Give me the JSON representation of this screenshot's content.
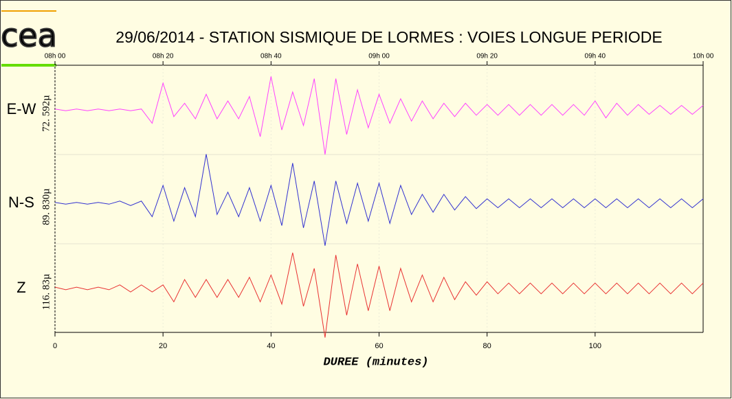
{
  "chart_data": {
    "type": "seismogram",
    "logo": "cea",
    "title": "29/06/2014  -  STATION SISMIQUE DE LORMES : VOIES LONGUE PERIODE",
    "xlabel": "DUREE (minutes)",
    "xlim": [
      0,
      120
    ],
    "xticks": [
      0,
      20,
      40,
      60,
      80,
      100
    ],
    "top_xticks": [
      {
        "value": 0,
        "label": "08h 00"
      },
      {
        "value": 20,
        "label": "08h 20"
      },
      {
        "value": 40,
        "label": "08h 40"
      },
      {
        "value": 60,
        "label": "09h 00"
      },
      {
        "value": 80,
        "label": "09h 20"
      },
      {
        "value": 100,
        "label": "09h 40"
      },
      {
        "value": 120,
        "label": "10h 00"
      }
    ],
    "ylim": [
      -1,
      1
    ],
    "grid": true,
    "x": [
      0,
      2,
      4,
      6,
      8,
      10,
      12,
      14,
      16,
      18,
      20,
      22,
      24,
      26,
      28,
      30,
      32,
      34,
      36,
      38,
      40,
      42,
      44,
      46,
      48,
      50,
      52,
      54,
      56,
      58,
      60,
      62,
      64,
      66,
      68,
      70,
      72,
      74,
      76,
      78,
      80,
      82,
      84,
      86,
      88,
      90,
      92,
      94,
      96,
      98,
      100,
      102,
      104,
      106,
      108,
      110,
      112,
      114,
      116,
      118,
      120
    ],
    "series": [
      {
        "name": "E-W",
        "scale_label": "72. 592µ",
        "color": "#ff40ff",
        "values": [
          0.02,
          -0.02,
          0.02,
          -0.02,
          0.02,
          -0.02,
          0.02,
          -0.02,
          0.02,
          -0.3,
          0.6,
          -0.15,
          0.15,
          -0.2,
          0.35,
          -0.2,
          0.2,
          -0.2,
          0.3,
          -0.6,
          0.75,
          -0.45,
          0.4,
          -0.35,
          0.7,
          -1.0,
          0.7,
          -0.55,
          0.45,
          -0.4,
          0.35,
          -0.3,
          0.25,
          -0.25,
          0.2,
          -0.2,
          0.15,
          -0.15,
          0.15,
          -0.12,
          0.12,
          -0.12,
          0.12,
          -0.12,
          0.12,
          -0.12,
          0.12,
          -0.12,
          0.12,
          -0.12,
          0.2,
          -0.18,
          0.15,
          -0.12,
          0.12,
          -0.1,
          0.1,
          -0.1,
          0.1,
          -0.1,
          0.1
        ]
      },
      {
        "name": "N-S",
        "scale_label": "89. 830µ",
        "color": "#3030d0",
        "values": [
          0.02,
          -0.02,
          0.02,
          -0.02,
          0.02,
          -0.02,
          0.05,
          -0.05,
          0.05,
          -0.3,
          0.4,
          -0.4,
          0.35,
          -0.3,
          1.1,
          -0.25,
          0.25,
          -0.3,
          0.35,
          -0.4,
          0.4,
          -0.5,
          0.9,
          -0.55,
          0.5,
          -0.95,
          0.5,
          -0.45,
          0.45,
          -0.4,
          0.45,
          -0.45,
          0.4,
          -0.25,
          0.2,
          -0.2,
          0.2,
          -0.15,
          0.15,
          -0.12,
          0.1,
          -0.1,
          0.1,
          -0.1,
          0.1,
          -0.1,
          0.1,
          -0.1,
          0.1,
          -0.1,
          0.1,
          -0.1,
          0.1,
          -0.1,
          0.1,
          -0.1,
          0.1,
          -0.1,
          0.1,
          -0.1,
          0.1
        ]
      },
      {
        "name": "Z",
        "scale_label": "116. 83µ",
        "color": "#e83030",
        "values": [
          0.03,
          -0.03,
          0.03,
          -0.03,
          0.03,
          -0.03,
          0.08,
          -0.08,
          0.08,
          -0.08,
          0.08,
          -0.3,
          0.2,
          -0.2,
          0.2,
          -0.2,
          0.2,
          -0.2,
          0.25,
          -0.3,
          0.3,
          -0.35,
          0.8,
          -0.4,
          0.45,
          -1.1,
          0.75,
          -0.6,
          0.55,
          -0.5,
          0.5,
          -0.5,
          0.45,
          -0.3,
          0.3,
          -0.3,
          0.25,
          -0.25,
          0.15,
          -0.15,
          0.15,
          -0.12,
          0.12,
          -0.12,
          0.12,
          -0.12,
          0.12,
          -0.12,
          0.12,
          -0.12,
          0.12,
          -0.12,
          0.12,
          -0.12,
          0.12,
          -0.12,
          0.12,
          -0.12,
          0.12,
          -0.12,
          0.12
        ]
      }
    ]
  }
}
